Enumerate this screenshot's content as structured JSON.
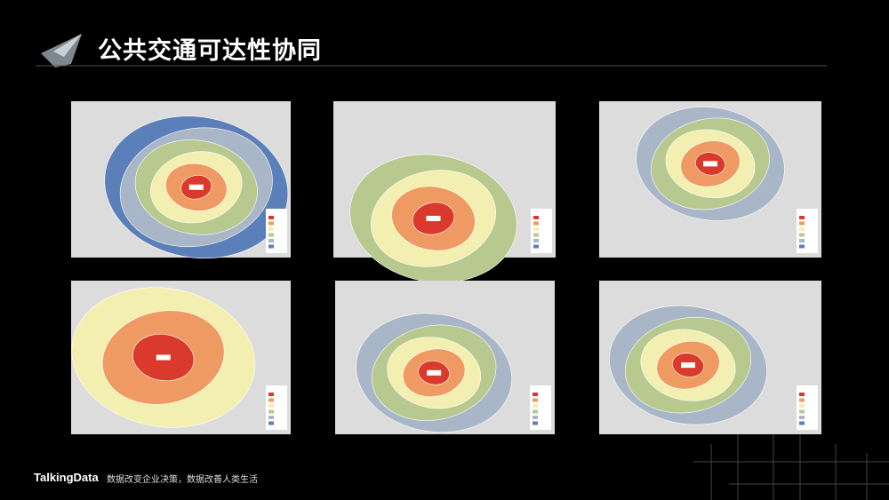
{
  "header": {
    "title": "公共交通可达性协同"
  },
  "footer": {
    "brand": "TalkingData",
    "slogan": "数据改变企业决策，数据改善人类生活"
  }
}
